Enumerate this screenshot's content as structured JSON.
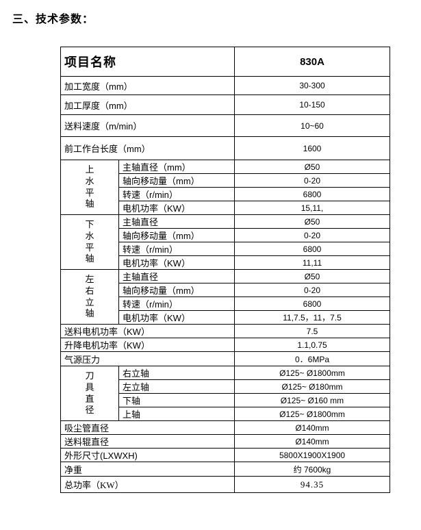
{
  "title": "三、技术参数：",
  "table": {
    "header": {
      "name": "项目名称",
      "model": "830A"
    },
    "rows1": [
      {
        "label": "加工宽度（mm）",
        "value": "30-300"
      },
      {
        "label": "加工厚度（mm）",
        "value": "10-150"
      },
      {
        "label": "送料速度（m/min）",
        "value": "10~60"
      },
      {
        "label": "前工作台长度（mm）",
        "value": "1600"
      }
    ],
    "groups": [
      {
        "name": "上水平轴",
        "items": [
          {
            "label": "主轴直径（mm）",
            "value": "Ø50"
          },
          {
            "label": "轴向移动量（mm）",
            "value": "0-20"
          },
          {
            "label": "转速（r/min）",
            "value": "6800"
          },
          {
            "label": "电机功率（KW）",
            "value": "15,11,"
          }
        ]
      },
      {
        "name": "下水平轴",
        "items": [
          {
            "label": "主轴直径",
            "value": "Ø50"
          },
          {
            "label": "轴向移动量（mm）",
            "value": "0-20"
          },
          {
            "label": "转速（r/min）",
            "value": "6800"
          },
          {
            "label": "电机功率（KW）",
            "value": "11,11"
          }
        ]
      },
      {
        "name": "左右立轴",
        "items": [
          {
            "label": "主轴直径",
            "value": "Ø50"
          },
          {
            "label": "轴向移动量（mm）",
            "value": "0-20"
          },
          {
            "label": "转速（r/min）",
            "value": "6800"
          },
          {
            "label": "电机功率（KW）",
            "value": "11,7.5，11，7.5"
          }
        ]
      }
    ],
    "rows2": [
      {
        "label": "送料电机功率（KW）",
        "value": "7.5"
      },
      {
        "label": "升降电机功率（KW）",
        "value": "1.1,0.75"
      },
      {
        "label": "气源压力",
        "value": "0．6MPa"
      }
    ],
    "tool_group": {
      "name": "刀具直径",
      "items": [
        {
          "label": "右立轴",
          "value": "Ø125~ Ø1800mm"
        },
        {
          "label": "左立轴",
          "value": "Ø125~ Ø180mm"
        },
        {
          "label": "下轴",
          "value": "Ø125~ Ø160 mm"
        },
        {
          "label": "上轴",
          "value": "Ø125~ Ø1800mm"
        }
      ]
    },
    "rows3": [
      {
        "label": "吸尘管直径",
        "value": "Ø140mm"
      },
      {
        "label": "送料辊直径",
        "value": "Ø140mm"
      },
      {
        "label": "外形尺寸(LXWXH)",
        "value": "5800X1900X1900"
      },
      {
        "label": "净重",
        "value": "约 7600kg"
      },
      {
        "label": "总功率（KW）",
        "value": "94.35"
      }
    ]
  }
}
